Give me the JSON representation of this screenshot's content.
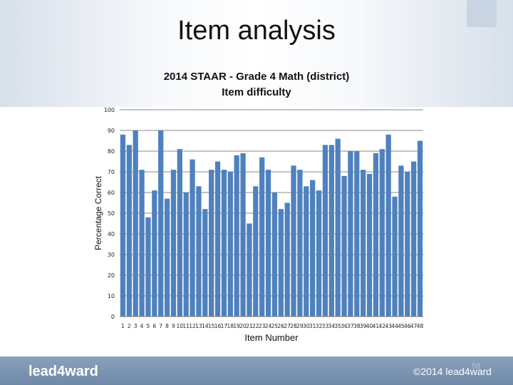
{
  "slide": {
    "title": "Item analysis",
    "page_number": "58"
  },
  "footer": {
    "left_brand": "lead4ward",
    "right_brand": "©2014 lead4ward"
  },
  "colors": {
    "bar": "#4f81bd",
    "gridline": "#888888",
    "footer": "#7a93b1"
  },
  "chart_data": {
    "type": "bar",
    "title": "2014 STAAR - Grade 4 Math (district)",
    "subtitle": "Item difficulty",
    "xlabel": "Item Number",
    "ylabel": "Percentage Correct",
    "ylim": [
      0,
      100
    ],
    "yticks": [
      0,
      10,
      20,
      30,
      40,
      50,
      60,
      70,
      80,
      90,
      100
    ],
    "grid": true,
    "legend": "none",
    "categories": [
      "1",
      "2",
      "3",
      "4",
      "5",
      "6",
      "7",
      "8",
      "9",
      "10",
      "11",
      "12",
      "13",
      "14",
      "15",
      "16",
      "17",
      "18",
      "19",
      "20",
      "21",
      "22",
      "23",
      "24",
      "25",
      "26",
      "27",
      "28",
      "29",
      "30",
      "31",
      "32",
      "33",
      "34",
      "35",
      "36",
      "37",
      "38",
      "39",
      "40",
      "41",
      "42",
      "43",
      "44",
      "45",
      "46",
      "47",
      "48"
    ],
    "values": [
      88,
      83,
      90,
      71,
      48,
      61,
      90,
      57,
      71,
      81,
      60,
      76,
      63,
      52,
      71,
      75,
      71,
      70,
      78,
      79,
      45,
      63,
      77,
      71,
      60,
      52,
      55,
      73,
      71,
      63,
      66,
      61,
      83,
      83,
      86,
      68,
      80,
      80,
      71,
      69,
      79,
      81,
      88,
      58,
      73,
      70,
      75,
      85
    ]
  }
}
